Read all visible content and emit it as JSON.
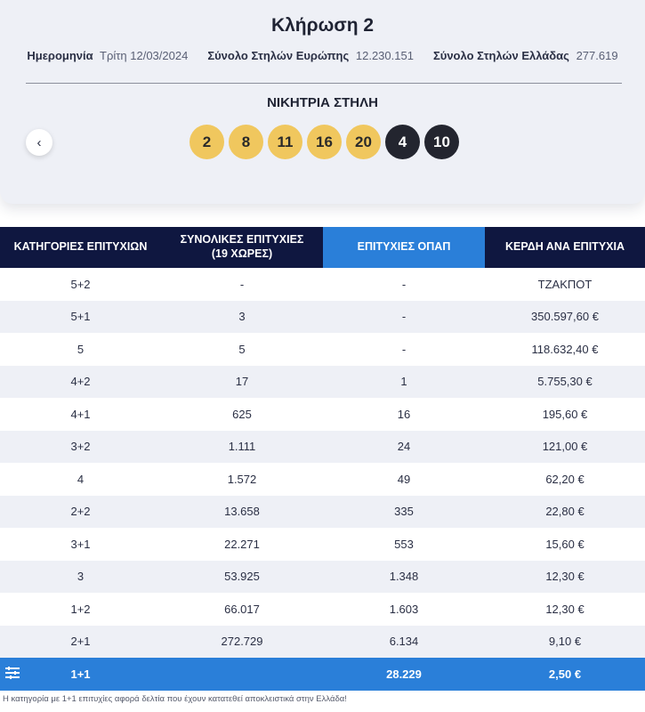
{
  "draw": {
    "title": "Κλήρωση 2",
    "date_label": "Ημερομηνία",
    "date_value": "Τρίτη 12/03/2024",
    "europe_label": "Σύνολο Στηλών Ευρώπης",
    "europe_value": "12.230.151",
    "greece_label": "Σύνολο Στηλών Ελλάδας",
    "greece_value": "277.619",
    "winning_label": "ΝΙΚΗΤΡΙΑ ΣΤΗΛΗ",
    "prev_icon": "chevron-left-icon",
    "prev_glyph": "‹",
    "numbers": [
      "2",
      "8",
      "11",
      "16",
      "20"
    ],
    "stars": [
      "4",
      "10"
    ],
    "colors": {
      "main_ball": "#f0c75e",
      "star_ball": "#23252f",
      "header": "#0f1740",
      "accent": "#2a7fd9"
    }
  },
  "table": {
    "headers": [
      "ΚΑΤΗΓΟΡΙΕΣ ΕΠΙΤΥΧΙΩΝ",
      "ΣΥΝΟΛΙΚΕΣ ΕΠΙΤΥΧΙΕΣ\n(19 ΧΩΡΕΣ)",
      "ΕΠΙΤΥΧΙΕΣ ΟΠΑΠ",
      "ΚΕΡΔΗ ΑΝΑ ΕΠΙΤΥΧΙΑ"
    ],
    "rows": [
      [
        "5+2",
        "-",
        "-",
        "ΤΖΑΚΠΟΤ"
      ],
      [
        "5+1",
        "3",
        "-",
        "350.597,60 €"
      ],
      [
        "5",
        "5",
        "-",
        "118.632,40 €"
      ],
      [
        "4+2",
        "17",
        "1",
        "5.755,30 €"
      ],
      [
        "4+1",
        "625",
        "16",
        "195,60 €"
      ],
      [
        "3+2",
        "1.111",
        "24",
        "121,00 €"
      ],
      [
        "4",
        "1.572",
        "49",
        "62,20 €"
      ],
      [
        "2+2",
        "13.658",
        "335",
        "22,80 €"
      ],
      [
        "3+1",
        "22.271",
        "553",
        "15,60 €"
      ],
      [
        "3",
        "53.925",
        "1.348",
        "12,30 €"
      ],
      [
        "1+2",
        "66.017",
        "1.603",
        "12,30 €"
      ],
      [
        "2+1",
        "272.729",
        "6.134",
        "9,10 €"
      ]
    ],
    "total_row": {
      "icon": "list-icon",
      "category": "1+1",
      "total": "",
      "opap": "28.229",
      "prize": "2,50 €"
    }
  },
  "footnote": "Η κατηγορία με 1+1 επιτυχίες αφορά δελτία που έχουν κατατεθεί αποκλειστικά στην Ελλάδα!"
}
